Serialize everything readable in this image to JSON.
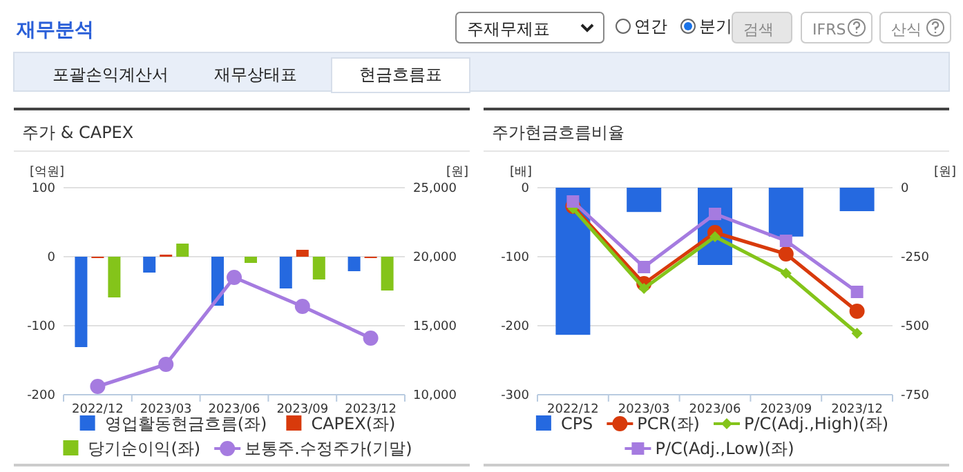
{
  "chart_data": [
    {
      "type": "other",
      "title": "재무분석",
      "annotations": [
        "주재무제표",
        "연간",
        "분기",
        "검색",
        "IFRS",
        "산식",
        "포괄손익계산서",
        "재무상태표",
        "현금흐름표"
      ]
    },
    {
      "type": "bar",
      "title": "주가 & CAPEX",
      "ylabel": "[억원]",
      "y2label": "[원]",
      "categories": [
        "2022/12",
        "2023/03",
        "2023/06",
        "2023/09",
        "2023/12"
      ],
      "series": [
        {
          "name": "영업활동현금흐름(좌)",
          "color": "#2569e0",
          "values": [
            -131,
            -23,
            -71,
            -46,
            -21
          ]
        },
        {
          "name": "CAPEX(좌)",
          "color": "#d83a0b",
          "values": [
            -2,
            3,
            0,
            10,
            -2
          ]
        },
        {
          "name": "당기순이익(좌)",
          "color": "#84c41a",
          "values": [
            -59,
            19,
            -9,
            -33,
            -49
          ]
        },
        {
          "name": "보통주.수정주가(기말)",
          "type": "line",
          "axis": "y2",
          "marker": "circle",
          "color": "#a57be0",
          "values": [
            10600,
            12200,
            18500,
            16400,
            14100
          ]
        }
      ],
      "ylim": [
        -200,
        100
      ],
      "yticks": [
        -200,
        -100,
        0,
        100
      ],
      "y2lim": [
        10000,
        25000
      ],
      "y2ticks": [
        {
          "value": 10000,
          "label": "10,000"
        },
        {
          "value": 15000,
          "label": "15,000"
        },
        {
          "value": 20000,
          "label": "20,000"
        },
        {
          "value": 25000,
          "label": "25,000"
        }
      ],
      "grid": "y",
      "legend": "bottom"
    },
    {
      "type": "bar",
      "title": "주가현금흐름비율",
      "ylabel": "[배]",
      "y2label": "[원]",
      "categories": [
        "2022/12",
        "2023/03",
        "2023/06",
        "2023/09",
        "2023/12"
      ],
      "series": [
        {
          "name": "CPS",
          "color": "#2569e0",
          "axis": "y2",
          "values": [
            -533,
            -88,
            -280,
            -177,
            -85
          ]
        },
        {
          "name": "PCR(좌)",
          "type": "line",
          "marker": "circle",
          "color": "#d83a0b",
          "values": [
            -27,
            -139,
            -65,
            -96,
            -179
          ]
        },
        {
          "name": "P/C(Adj.,High)(좌)",
          "type": "line",
          "marker": "diamond",
          "color": "#84c41a",
          "values": [
            -30,
            -146,
            -71,
            -124,
            -211
          ]
        },
        {
          "name": "P/C(Adj.,Low)(좌)",
          "type": "line",
          "marker": "square",
          "color": "#a57be0",
          "values": [
            -20,
            -115,
            -38,
            -77,
            -151
          ]
        }
      ],
      "ylim": [
        -300,
        0
      ],
      "yticks": [
        -300,
        -200,
        -100,
        0
      ],
      "y2lim": [
        -750,
        0
      ],
      "y2ticks": [
        -750,
        -500,
        -250,
        0
      ],
      "grid": "y",
      "legend": "bottom"
    }
  ]
}
